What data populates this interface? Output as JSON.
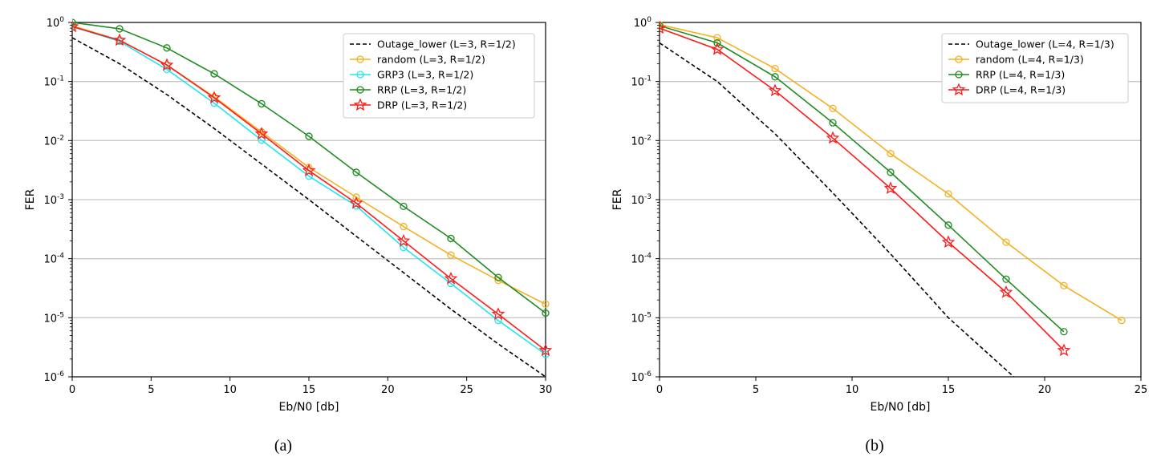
{
  "chart_data": [
    {
      "type": "line",
      "caption": "(a)",
      "xlabel": "Eb/N0 [db]",
      "ylabel": "FER",
      "xlim": [
        0,
        30
      ],
      "ylim": [
        1e-06,
        1
      ],
      "yscale": "log",
      "xticks": [
        0,
        5,
        10,
        15,
        20,
        25,
        30
      ],
      "yticks": [
        "10^0",
        "10^-1",
        "10^-2",
        "10^-3",
        "10^-4",
        "10^-5",
        "10^-6"
      ],
      "grid": "horizontal major",
      "legend_position": "top-right",
      "series": [
        {
          "name": "Outage_lower (L=3, R=1/2)",
          "color": "#000000",
          "style": "dashed",
          "marker": "none",
          "x": [
            0,
            3,
            6,
            9,
            12,
            15,
            18,
            21,
            24,
            27,
            30
          ],
          "y": [
            0.55,
            0.2,
            0.06,
            0.016,
            0.004,
            0.001,
            0.00024,
            5.8e-05,
            1.4e-05,
            3.6e-06,
            1e-06
          ]
        },
        {
          "name": "random (L=3, R=1/2)",
          "color": "#f5b020",
          "style": "solid",
          "marker": "circle",
          "x": [
            0,
            3,
            6,
            9,
            12,
            15,
            18,
            21,
            24,
            27,
            30
          ],
          "y": [
            0.88,
            0.5,
            0.19,
            0.055,
            0.014,
            0.0035,
            0.0011,
            0.00035,
            0.000115,
            4.3e-05,
            1.7e-05
          ]
        },
        {
          "name": "GRP3 (L=3, R=1/2)",
          "color": "#22e6f0",
          "style": "solid",
          "marker": "circle",
          "x": [
            0,
            3,
            6,
            9,
            12,
            15,
            18,
            21,
            24,
            27,
            30
          ],
          "y": [
            0.85,
            0.48,
            0.16,
            0.043,
            0.0102,
            0.0025,
            0.00078,
            0.000155,
            3.8e-05,
            9e-06,
            2.4e-06
          ]
        },
        {
          "name": "RRP (L=3, R=1/2)",
          "color": "#1e8c1e",
          "style": "solid",
          "marker": "circle",
          "x": [
            0,
            3,
            6,
            9,
            12,
            15,
            18,
            21,
            24,
            27,
            30
          ],
          "y": [
            1.0,
            0.78,
            0.37,
            0.135,
            0.042,
            0.0118,
            0.0029,
            0.00077,
            0.00022,
            4.8e-05,
            1.2e-05
          ]
        },
        {
          "name": "DRP (L=3, R=1/2)",
          "color": "#ff1a1a",
          "style": "solid",
          "marker": "star",
          "x": [
            0,
            3,
            6,
            9,
            12,
            15,
            18,
            21,
            24,
            27,
            30
          ],
          "y": [
            0.85,
            0.5,
            0.19,
            0.053,
            0.013,
            0.0031,
            0.00087,
            0.0002,
            4.6e-05,
            1.15e-05,
            2.8e-06
          ]
        }
      ]
    },
    {
      "type": "line",
      "caption": "(b)",
      "xlabel": "Eb/N0 [db]",
      "ylabel": "FER",
      "xlim": [
        0,
        25
      ],
      "ylim": [
        1e-06,
        1
      ],
      "yscale": "log",
      "xticks": [
        0,
        5,
        10,
        15,
        20,
        25
      ],
      "yticks": [
        "10^0",
        "10^-1",
        "10^-2",
        "10^-3",
        "10^-4",
        "10^-5",
        "10^-6"
      ],
      "grid": "horizontal major",
      "legend_position": "top-right",
      "series": [
        {
          "name": "Outage_lower (L=4, R=1/3)",
          "color": "#000000",
          "style": "dashed",
          "marker": "none",
          "x": [
            0,
            3,
            6,
            9,
            12,
            15,
            18.4
          ],
          "y": [
            0.45,
            0.1,
            0.013,
            0.0013,
            0.00012,
            1e-05,
            1e-06
          ]
        },
        {
          "name": "random (L=4, R=1/3)",
          "color": "#f5b020",
          "style": "solid",
          "marker": "circle",
          "x": [
            0,
            3,
            6,
            9,
            12,
            15,
            18,
            21,
            24
          ],
          "y": [
            0.92,
            0.55,
            0.165,
            0.035,
            0.006,
            0.00125,
            0.00019,
            3.5e-05,
            9e-06
          ]
        },
        {
          "name": "RRP (L=4, R=1/3)",
          "color": "#1e8c1e",
          "style": "solid",
          "marker": "circle",
          "x": [
            0,
            3,
            6,
            9,
            12,
            15,
            18,
            21
          ],
          "y": [
            0.88,
            0.45,
            0.12,
            0.02,
            0.0029,
            0.00037,
            4.5e-05,
            5.8e-06
          ]
        },
        {
          "name": "DRP (L=4, R=1/3)",
          "color": "#ff1a1a",
          "style": "solid",
          "marker": "star",
          "x": [
            0,
            3,
            6,
            9,
            12,
            15,
            18,
            21
          ],
          "y": [
            0.8,
            0.35,
            0.07,
            0.011,
            0.00155,
            0.00019,
            2.7e-05,
            2.8e-06
          ]
        }
      ]
    }
  ]
}
